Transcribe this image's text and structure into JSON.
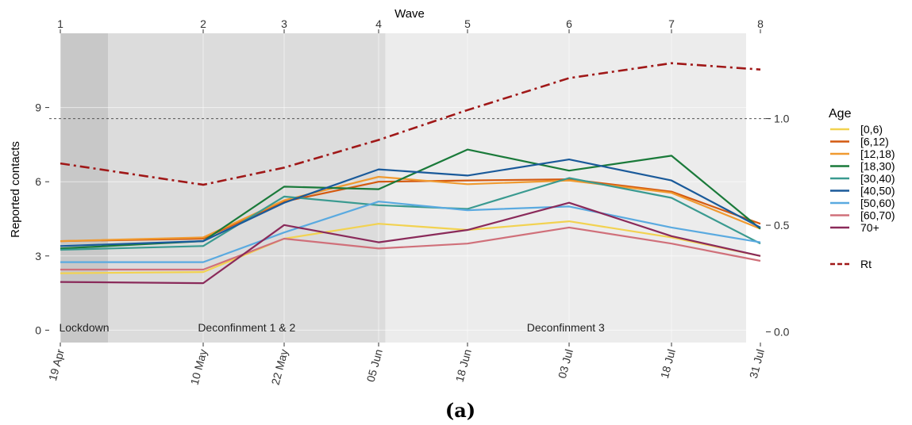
{
  "chart_data": {
    "type": "line",
    "top_axis_title": "Wave",
    "ylabel": "Reported contacts",
    "caption": "(a)",
    "legend_title": "Age",
    "x": [
      "19 Apr",
      "10 May",
      "22 May",
      "05 Jun",
      "18 Jun",
      "03 Jul",
      "18 Jul",
      "31 Jul"
    ],
    "waves": [
      "1",
      "2",
      "3",
      "4",
      "5",
      "6",
      "7",
      "8"
    ],
    "ylim": [
      -0.5,
      12
    ],
    "yticks": [
      {
        "v": 0,
        "label": "0"
      },
      {
        "v": 3,
        "label": "3"
      },
      {
        "v": 6,
        "label": "6"
      },
      {
        "v": 9,
        "label": "9"
      }
    ],
    "y2ticks": [
      {
        "v": 0,
        "label": "0.0"
      },
      {
        "v": 0.5,
        "label": "0.5"
      },
      {
        "v": 1,
        "label": "1.0"
      }
    ],
    "y2lim": [
      -0.05,
      1.4
    ],
    "reference_line": {
      "axis": "right",
      "value": 1.0
    },
    "grid": true,
    "legend_position": "right",
    "phases": [
      {
        "label": "Lockdown",
        "from_day": 0,
        "to_day": 7,
        "color": "#c8c8c8"
      },
      {
        "label": "Deconfinment 1 & 2",
        "from_day": 7,
        "to_day": 48,
        "color": "#dcdcdc"
      },
      {
        "label": "Deconfinment 3",
        "from_day": 48,
        "to_day": 102,
        "color": "#ececec"
      }
    ],
    "series": [
      {
        "name": "[0,6)",
        "color": "#f2d250",
        "values": [
          2.3,
          2.35,
          3.7,
          4.3,
          4.05,
          4.4,
          3.75,
          3.0
        ]
      },
      {
        "name": "[6,12)",
        "color": "#d45a10",
        "values": [
          3.6,
          3.7,
          5.2,
          6.0,
          6.05,
          6.1,
          5.6,
          4.3
        ]
      },
      {
        "name": "[12,18)",
        "color": "#f09a30",
        "values": [
          3.6,
          3.75,
          5.25,
          6.2,
          5.9,
          6.05,
          5.55,
          4.1
        ]
      },
      {
        "name": "[18,30)",
        "color": "#1a7a3a",
        "values": [
          3.3,
          3.6,
          5.8,
          5.7,
          7.3,
          6.45,
          7.05,
          4.1
        ]
      },
      {
        "name": "[30,40)",
        "color": "#3a9a90",
        "values": [
          3.25,
          3.4,
          5.4,
          5.05,
          4.9,
          6.15,
          5.35,
          3.5
        ]
      },
      {
        "name": "[40,50)",
        "color": "#1a5a9a",
        "values": [
          3.4,
          3.6,
          5.15,
          6.5,
          6.25,
          6.9,
          6.05,
          4.15
        ]
      },
      {
        "name": "[50,60)",
        "color": "#5aaae0",
        "values": [
          2.75,
          2.75,
          3.95,
          5.2,
          4.85,
          5.0,
          4.15,
          3.55
        ]
      },
      {
        "name": "[60,70)",
        "color": "#d0707a",
        "values": [
          2.45,
          2.45,
          3.7,
          3.3,
          3.5,
          4.15,
          3.5,
          2.8
        ]
      },
      {
        "name": "70+",
        "color": "#8a2a5a",
        "values": [
          1.95,
          1.9,
          4.25,
          3.55,
          4.05,
          5.15,
          3.8,
          3.0
        ]
      }
    ],
    "rt": {
      "name": "Rt",
      "color": "#a01818",
      "values": [
        0.79,
        0.69,
        0.77,
        0.9,
        1.04,
        1.19,
        1.26,
        1.23
      ]
    }
  }
}
